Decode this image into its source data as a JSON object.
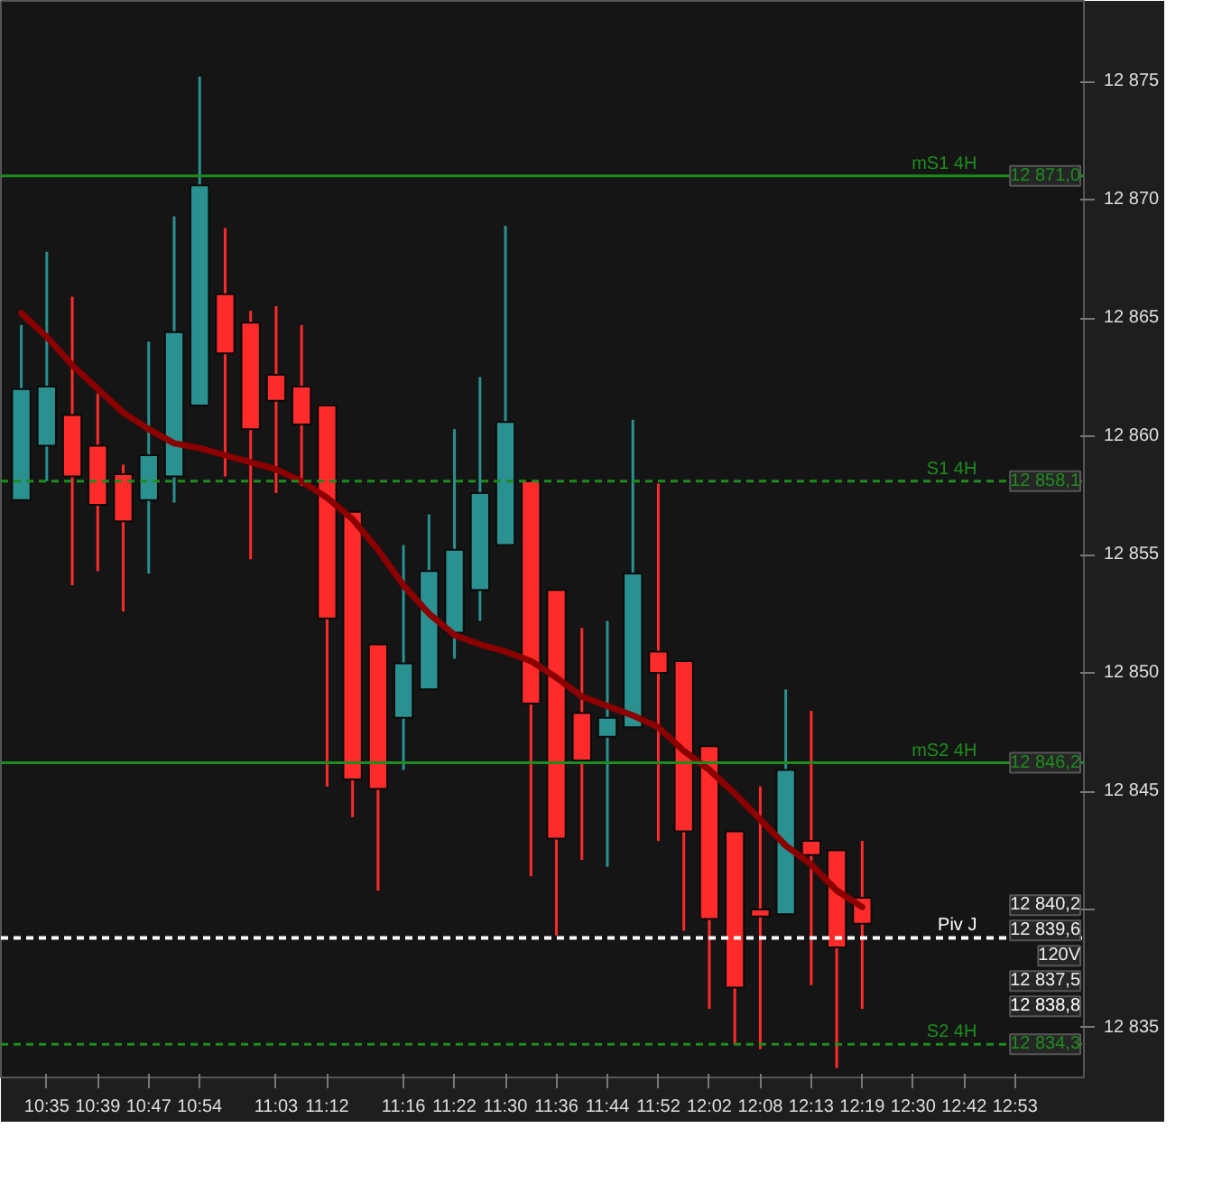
{
  "chart_data": {
    "type": "candlestick",
    "categories": [
      null,
      "10:35",
      null,
      "10:39",
      null,
      "10:47",
      null,
      "10:54",
      null,
      null,
      "11:03",
      null,
      "11:12",
      null,
      null,
      "11:16",
      null,
      "11:22",
      null,
      "11:30",
      null,
      "11:36",
      null,
      "11:44",
      null,
      "11:52",
      null,
      "12:02",
      null,
      "12:08",
      null,
      "12:13",
      null,
      "12:19",
      null,
      "12:30",
      null,
      "12:42",
      null,
      "12:53",
      null,
      null
    ],
    "ohlc": [
      [
        12857.3,
        12864.7,
        12857.3,
        12862.0
      ],
      [
        12859.6,
        12867.8,
        12858.1,
        12862.1
      ],
      [
        12860.9,
        12865.9,
        12853.7,
        12858.3
      ],
      [
        12859.6,
        12861.8,
        12854.3,
        12857.1
      ],
      [
        12858.4,
        12858.8,
        12852.6,
        12856.4
      ],
      [
        12857.3,
        12864.0,
        12854.2,
        12859.2
      ],
      [
        12858.3,
        12869.3,
        12857.2,
        12864.4
      ],
      [
        12861.3,
        12875.2,
        12861.3,
        12870.6
      ],
      [
        12866.0,
        12868.8,
        12858.3,
        12863.5
      ],
      [
        12864.8,
        12865.3,
        12854.8,
        12860.3
      ],
      [
        12862.6,
        12865.5,
        12857.6,
        12861.5
      ],
      [
        12862.1,
        12864.7,
        12857.9,
        12860.5
      ],
      [
        12861.3,
        12861.3,
        12845.2,
        12852.3
      ],
      [
        12856.8,
        12856.8,
        12843.9,
        12845.5
      ],
      [
        12851.2,
        12851.2,
        12840.8,
        12845.1
      ],
      [
        12848.1,
        12855.4,
        12845.9,
        12850.4
      ],
      [
        12849.3,
        12856.7,
        12849.3,
        12854.3
      ],
      [
        12851.7,
        12860.3,
        12850.6,
        12855.2
      ],
      [
        12853.5,
        12862.5,
        12852.2,
        12857.6
      ],
      [
        12855.4,
        12868.9,
        12855.4,
        12860.6
      ],
      [
        12858.1,
        12858.1,
        12841.4,
        12848.7
      ],
      [
        12853.5,
        12853.5,
        12838.9,
        12843.0
      ],
      [
        12848.3,
        12851.9,
        12842.1,
        12846.3
      ],
      [
        12847.3,
        12852.2,
        12841.8,
        12848.1
      ],
      [
        12847.7,
        12860.7,
        12847.7,
        12854.2
      ],
      [
        12850.9,
        12858.0,
        12842.9,
        12850.0
      ],
      [
        12850.5,
        12850.5,
        12839.1,
        12843.3
      ],
      [
        12846.9,
        12846.9,
        12835.8,
        12839.6
      ],
      [
        12843.3,
        12843.3,
        12834.3,
        12836.7
      ],
      [
        12840.0,
        12845.2,
        12834.1,
        12839.7
      ],
      [
        12839.8,
        12849.3,
        12839.8,
        12845.9
      ],
      [
        12842.9,
        12848.4,
        12836.8,
        12842.3
      ],
      [
        12842.5,
        12842.5,
        12833.3,
        12838.4
      ],
      [
        12840.5,
        12842.9,
        12835.8,
        12839.4
      ],
      null,
      null,
      null,
      null,
      null,
      null,
      null,
      null
    ],
    "colors": [
      "#2a9090",
      "#2a9090",
      "#ff2a2a",
      "#ff2a2a",
      "#ff2a2a",
      "#2a9090",
      "#2a9090",
      "#2a9090",
      "#ff2a2a",
      "#ff2a2a",
      "#ff2a2a",
      "#ff2a2a",
      "#ff2a2a",
      "#ff2a2a",
      "#ff2a2a",
      "#2a9090",
      "#2a9090",
      "#2a9090",
      "#2a9090",
      "#2a9090",
      "#ff2a2a",
      "#ff2a2a",
      "#ff2a2a",
      "#2a9090",
      "#2a9090",
      "#ff2a2a",
      "#ff2a2a",
      "#ff2a2a",
      "#ff2a2a",
      "#ff2a2a",
      "#2a9090",
      "#ff2a2a",
      "#ff2a2a",
      "#ff2a2a",
      null,
      null,
      null,
      null,
      null,
      null,
      null,
      null
    ],
    "series": [
      {
        "type": "line",
        "color": "#8b0000",
        "values": [
          12865.2,
          12864.2,
          12863.0,
          12862.0,
          12861.0,
          12860.3,
          12859.7,
          12859.5,
          12859.2,
          12858.9,
          12858.6,
          12858.1,
          12857.4,
          12856.5,
          12855.2,
          12853.7,
          12852.5,
          12851.6,
          12851.2,
          12850.9,
          12850.5,
          12849.8,
          12849.0,
          12848.6,
          12848.2,
          12847.7,
          12846.7,
          12845.9,
          12844.9,
          12843.8,
          12842.7,
          12841.9,
          12840.8,
          12840.1,
          null,
          null,
          null,
          null,
          null,
          null,
          null,
          null
        ]
      }
    ],
    "ylim": [
      12832.9,
      12878.4
    ],
    "yticks": [
      {
        "value": 12835,
        "label": "12 835"
      },
      {
        "value": 12840,
        "label": null
      },
      {
        "value": 12845,
        "label": "12 845"
      },
      {
        "value": 12850,
        "label": "12 850"
      },
      {
        "value": 12855,
        "label": "12 855"
      },
      {
        "value": 12860,
        "label": "12 860"
      },
      {
        "value": 12865,
        "label": "12 865"
      },
      {
        "value": 12870,
        "label": "12 870"
      },
      {
        "value": 12875,
        "label": "12 875"
      }
    ],
    "ref_lines": [
      {
        "axis": "y",
        "value": 12871.0,
        "label": "mS1 4H",
        "color": "#1e8c1e",
        "line_style": "solid"
      },
      {
        "axis": "y",
        "value": 12858.1,
        "label": "S1 4H",
        "color": "#1e8c1e",
        "line_style": "dashed"
      },
      {
        "axis": "y",
        "value": 12846.2,
        "label": "mS2 4H",
        "color": "#1e8c1e",
        "line_style": "solid"
      },
      {
        "axis": "y",
        "value": 12838.8,
        "label": "Piv J",
        "color": "#ffffff",
        "line_style": "dashed"
      },
      {
        "axis": "y",
        "value": 12834.3,
        "label": "S2 4H",
        "color": "#1e8c1e",
        "line_style": "dashed"
      }
    ],
    "annotations": [
      "12 871,0",
      "12 858,1",
      "12 846,2",
      "12 838,8",
      "12 834,3",
      "12 840,2",
      "12 839,6",
      "120V",
      "12 837,5"
    ]
  }
}
